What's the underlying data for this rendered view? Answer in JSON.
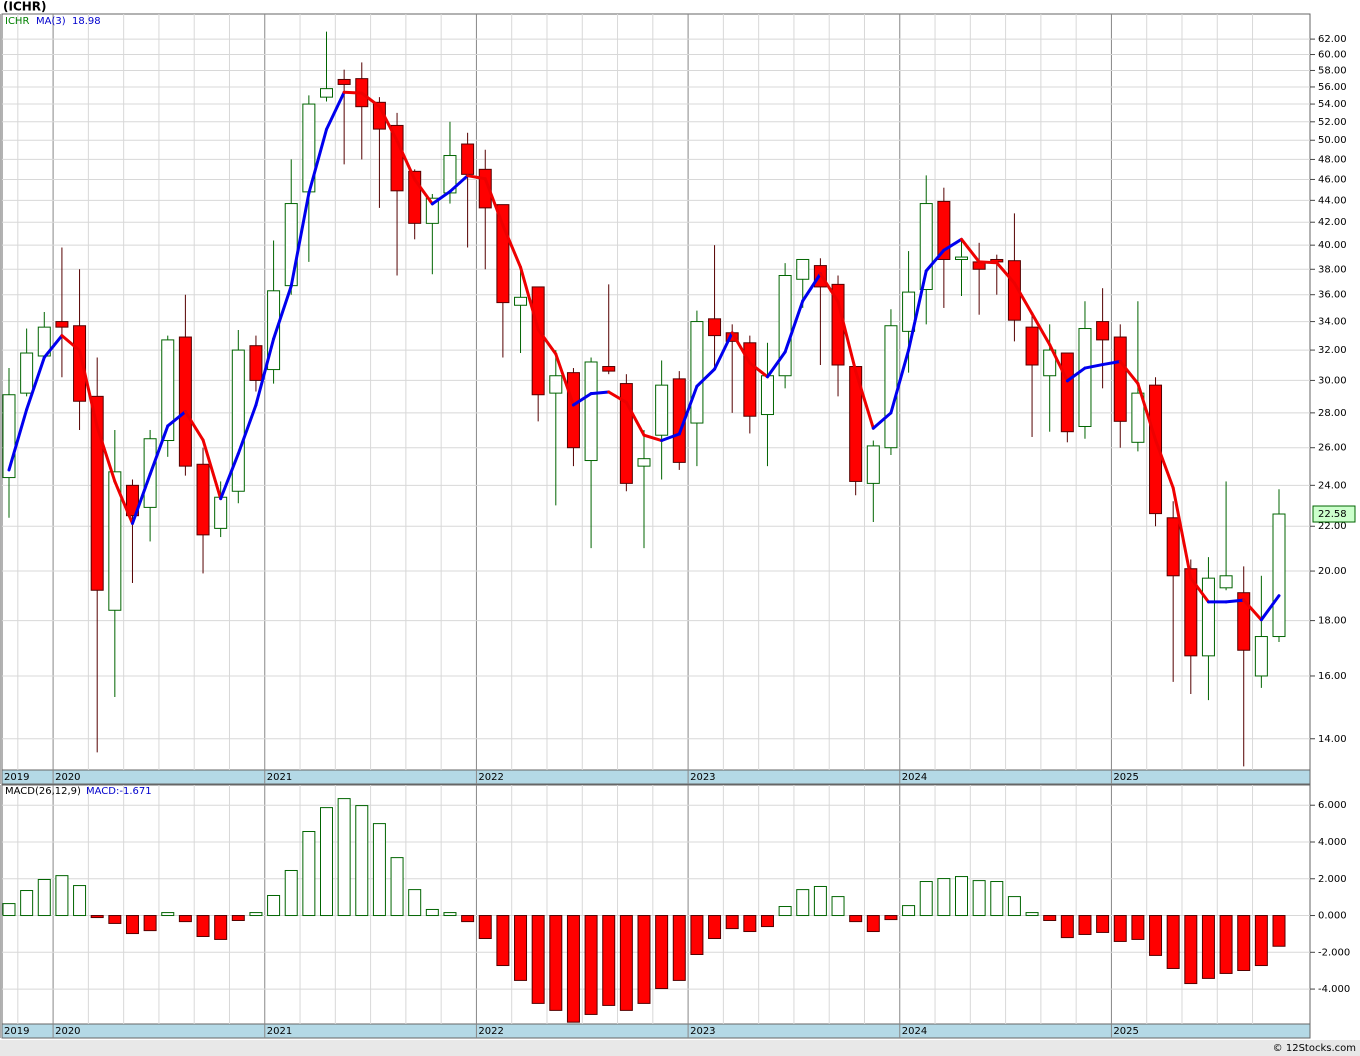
{
  "chart_data": [
    {
      "type": "candlestick",
      "title": "(ICHR)",
      "symbol": "ICHR",
      "source": "© 12Stocks.com",
      "categories": [
        "2019",
        null,
        null,
        "2020",
        null,
        null,
        null,
        null,
        null,
        null,
        null,
        null,
        null,
        null,
        null,
        "2021",
        null,
        null,
        null,
        null,
        null,
        null,
        null,
        null,
        null,
        null,
        null,
        "2022",
        null,
        null,
        null,
        null,
        null,
        null,
        null,
        null,
        null,
        null,
        null,
        "2023",
        null,
        null,
        null,
        null,
        null,
        null,
        null,
        null,
        null,
        null,
        null,
        "2024",
        null,
        null,
        null,
        null,
        null,
        null,
        null,
        null,
        null,
        null,
        null,
        "2025",
        null,
        null,
        null,
        null,
        null,
        null,
        null,
        null,
        null
      ],
      "open": [
        24.4,
        29.2,
        31.6,
        34.0,
        33.7,
        29.0,
        18.4,
        24.0,
        22.9,
        26.4,
        32.9,
        25.1,
        21.9,
        23.7,
        32.3,
        30.7,
        36.7,
        44.8,
        54.8,
        56.9,
        57.0,
        54.2,
        51.6,
        46.8,
        41.9,
        44.7,
        49.6,
        47.0,
        43.6,
        35.2,
        36.6,
        29.2,
        30.5,
        25.3,
        30.9,
        29.8,
        25.0,
        26.7,
        30.1,
        27.4,
        34.2,
        33.2,
        32.5,
        27.9,
        30.3,
        37.2,
        38.3,
        36.8,
        30.9,
        24.1,
        26.0,
        33.3,
        36.4,
        43.9,
        38.8,
        38.6,
        38.8,
        38.7,
        33.6,
        30.3,
        31.8,
        27.2,
        34.0,
        32.9,
        26.3,
        29.7,
        22.4,
        20.1,
        16.7,
        19.3,
        19.1,
        16.0,
        17.4
      ],
      "high": [
        30.8,
        33.5,
        34.7,
        39.8,
        38.0,
        31.5,
        27.0,
        24.3,
        27.0,
        33.0,
        36.0,
        26.0,
        24.2,
        33.4,
        33.0,
        40.4,
        48.0,
        55.0,
        63.0,
        58.1,
        59.0,
        54.8,
        53.0,
        47.0,
        44.6,
        52.0,
        50.8,
        49.0,
        43.6,
        38.4,
        36.6,
        32.0,
        30.8,
        31.5,
        36.8,
        30.4,
        27.0,
        31.3,
        30.6,
        34.8,
        40.0,
        33.8,
        33.0,
        32.5,
        38.5,
        38.8,
        38.9,
        37.5,
        30.9,
        26.4,
        34.9,
        39.5,
        46.4,
        45.2,
        40.5,
        40.2,
        39.2,
        42.8,
        34.5,
        33.8,
        31.8,
        35.5,
        36.5,
        33.8,
        35.5,
        30.2,
        23.2,
        20.5,
        20.6,
        24.2,
        20.2,
        19.8,
        23.8
      ],
      "low": [
        22.4,
        29.0,
        31.3,
        30.2,
        27.0,
        13.6,
        15.3,
        19.5,
        21.3,
        25.5,
        24.5,
        19.9,
        21.5,
        23.1,
        29.3,
        29.8,
        36.0,
        38.6,
        54.3,
        47.5,
        48.0,
        43.3,
        37.5,
        40.5,
        37.6,
        43.7,
        39.8,
        38.0,
        31.5,
        31.8,
        27.5,
        23.0,
        25.0,
        21.0,
        30.4,
        23.7,
        21.0,
        24.3,
        24.8,
        25.0,
        30.8,
        28.0,
        26.8,
        25.0,
        29.5,
        35.0,
        31.0,
        29.0,
        23.5,
        22.2,
        25.6,
        30.5,
        33.8,
        35.0,
        35.9,
        34.5,
        36.0,
        32.6,
        26.6,
        26.9,
        26.3,
        26.5,
        29.5,
        26.0,
        25.8,
        22.0,
        15.8,
        15.4,
        15.2,
        19.2,
        13.2,
        15.6,
        17.2
      ],
      "close": [
        29.1,
        31.8,
        33.6,
        33.6,
        28.7,
        19.2,
        24.7,
        22.5,
        26.5,
        32.7,
        25.0,
        21.6,
        23.4,
        32.0,
        30.0,
        36.3,
        43.7,
        54.0,
        55.8,
        56.3,
        53.7,
        51.2,
        44.9,
        41.9,
        44.2,
        48.4,
        46.5,
        43.3,
        35.4,
        35.8,
        29.1,
        30.3,
        26.0,
        31.2,
        30.6,
        24.1,
        25.4,
        29.7,
        25.2,
        34.0,
        33.0,
        32.6,
        27.8,
        30.3,
        37.5,
        38.8,
        36.6,
        31.0,
        24.2,
        26.1,
        33.7,
        36.2,
        43.7,
        38.8,
        39.0,
        38.0,
        38.6,
        34.1,
        31.0,
        32.0,
        26.9,
        33.5,
        32.7,
        27.5,
        29.2,
        22.6,
        19.8,
        16.7,
        19.7,
        19.8,
        16.9,
        17.4,
        22.58
      ],
      "up_color": "#006400",
      "down_color": "#ff0000",
      "ma": {
        "name": "MA(3)",
        "rise_color": "#0000ee",
        "fall_color": "#ee0000",
        "values": [
          24.8,
          28.2,
          31.5,
          33.0,
          31.97,
          27.17,
          24.2,
          22.13,
          24.57,
          27.23,
          28.07,
          26.43,
          23.33,
          25.67,
          28.47,
          32.77,
          36.67,
          44.67,
          51.17,
          55.37,
          55.27,
          53.73,
          49.93,
          46.0,
          43.67,
          44.83,
          46.37,
          46.07,
          41.73,
          38.17,
          33.43,
          31.73,
          28.47,
          29.17,
          29.27,
          28.63,
          26.7,
          26.4,
          26.77,
          29.63,
          30.73,
          33.2,
          31.13,
          30.23,
          31.87,
          35.53,
          37.63,
          35.47,
          30.6,
          27.1,
          28.0,
          32.0,
          37.87,
          39.57,
          40.5,
          38.6,
          38.53,
          36.9,
          34.57,
          32.37,
          29.97,
          30.8,
          31.03,
          31.23,
          29.8,
          26.43,
          23.87,
          19.7,
          18.73,
          18.73,
          18.8,
          18.03,
          18.98
        ]
      },
      "log_scale": true,
      "grid": true,
      "ylim": [
        13.1,
        65.4
      ],
      "yticks": [
        {
          "value": 14,
          "label": "14.00"
        },
        {
          "value": 16,
          "label": "16.00"
        },
        {
          "value": 18,
          "label": "18.00"
        },
        {
          "value": 20,
          "label": "20.00"
        },
        {
          "value": 22,
          "label": "22.00"
        },
        {
          "value": 24,
          "label": "24.00"
        },
        {
          "value": 26,
          "label": "26.00"
        },
        {
          "value": 28,
          "label": "28.00"
        },
        {
          "value": 30,
          "label": "30.00"
        },
        {
          "value": 32,
          "label": "32.00"
        },
        {
          "value": 34,
          "label": "34.00"
        },
        {
          "value": 36,
          "label": "36.00"
        },
        {
          "value": 38,
          "label": "38.00"
        },
        {
          "value": 40,
          "label": "40.00"
        },
        {
          "value": 42,
          "label": "42.00"
        },
        {
          "value": 44,
          "label": "44.00"
        },
        {
          "value": 46,
          "label": "46.00"
        },
        {
          "value": 48,
          "label": "48.00"
        },
        {
          "value": 50,
          "label": "50.00"
        },
        {
          "value": 52,
          "label": "52.00"
        },
        {
          "value": 54,
          "label": "54.00"
        },
        {
          "value": 56,
          "label": "56.00"
        },
        {
          "value": 58,
          "label": "58.00"
        },
        {
          "value": 60,
          "label": "60.00"
        },
        {
          "value": 62,
          "label": "62.00"
        }
      ]
    },
    {
      "type": "bar",
      "title": "MACD(26,12,9)",
      "legend": "MACD:-1.671",
      "values": [
        0.65,
        1.36,
        1.96,
        2.17,
        1.63,
        -0.11,
        -0.43,
        -0.98,
        -0.82,
        0.16,
        -0.33,
        -1.14,
        -1.3,
        -0.27,
        0.16,
        1.09,
        2.45,
        4.57,
        5.87,
        6.36,
        5.98,
        5.0,
        3.15,
        1.41,
        0.33,
        0.16,
        -0.33,
        -1.25,
        -2.72,
        -3.53,
        -4.78,
        -5.16,
        -5.8,
        -5.38,
        -4.89,
        -5.16,
        -4.78,
        -3.97,
        -3.53,
        -2.12,
        -1.25,
        -0.71,
        -0.87,
        -0.6,
        0.49,
        1.41,
        1.58,
        1.03,
        -0.33,
        -0.87,
        -0.22,
        0.54,
        1.85,
        2.01,
        2.12,
        1.9,
        1.85,
        1.03,
        0.16,
        -0.27,
        -1.2,
        -1.03,
        -0.92,
        -1.41,
        -1.3,
        -2.17,
        -2.88,
        -3.7,
        -3.42,
        -3.15,
        -2.99,
        -2.72,
        -1.671
      ],
      "pos_color": "#006400",
      "neg_color": "#ff0000",
      "grid": true,
      "ylim": [
        -5.9,
        7.1
      ],
      "yticks": [
        {
          "value": -4,
          "label": "-4.000"
        },
        {
          "value": -2,
          "label": "-2.000"
        },
        {
          "value": 0,
          "label": "0.000"
        },
        {
          "value": 2,
          "label": "2.000"
        },
        {
          "value": 4,
          "label": "4.000"
        },
        {
          "value": 6,
          "label": "6.000"
        }
      ]
    }
  ]
}
